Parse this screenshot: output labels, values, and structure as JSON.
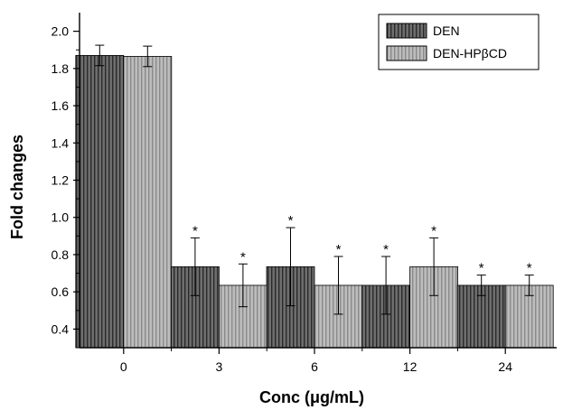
{
  "chart_data": {
    "type": "bar",
    "xlabel": "Conc (μg/mL)",
    "ylabel": "Fold changes",
    "categories": [
      "0",
      "3",
      "6",
      "12",
      "24"
    ],
    "ylim": [
      0.3,
      2.1
    ],
    "yticks": [
      "0.4",
      "0.6",
      "0.8",
      "1.0",
      "1.2",
      "1.4",
      "1.6",
      "1.8",
      "2.0"
    ],
    "series": [
      {
        "name": "DEN",
        "values": [
          1.87,
          0.735,
          0.735,
          0.635,
          0.635
        ],
        "errors": [
          0.055,
          0.155,
          0.21,
          0.155,
          0.055
        ],
        "significance": [
          "",
          "*",
          "*",
          "*",
          "*"
        ],
        "color": "#6e6e6e",
        "stripe": "#2a2a2a"
      },
      {
        "name": "DEN-HPβCD",
        "values": [
          1.865,
          0.635,
          0.635,
          0.735,
          0.635
        ],
        "errors": [
          0.055,
          0.115,
          0.155,
          0.155,
          0.055
        ],
        "significance": [
          "",
          "*",
          "*",
          "*",
          "*"
        ],
        "color": "#bdbdbd",
        "stripe": "#8a8a8a"
      }
    ],
    "legend_position": "top-right",
    "grid": false
  }
}
